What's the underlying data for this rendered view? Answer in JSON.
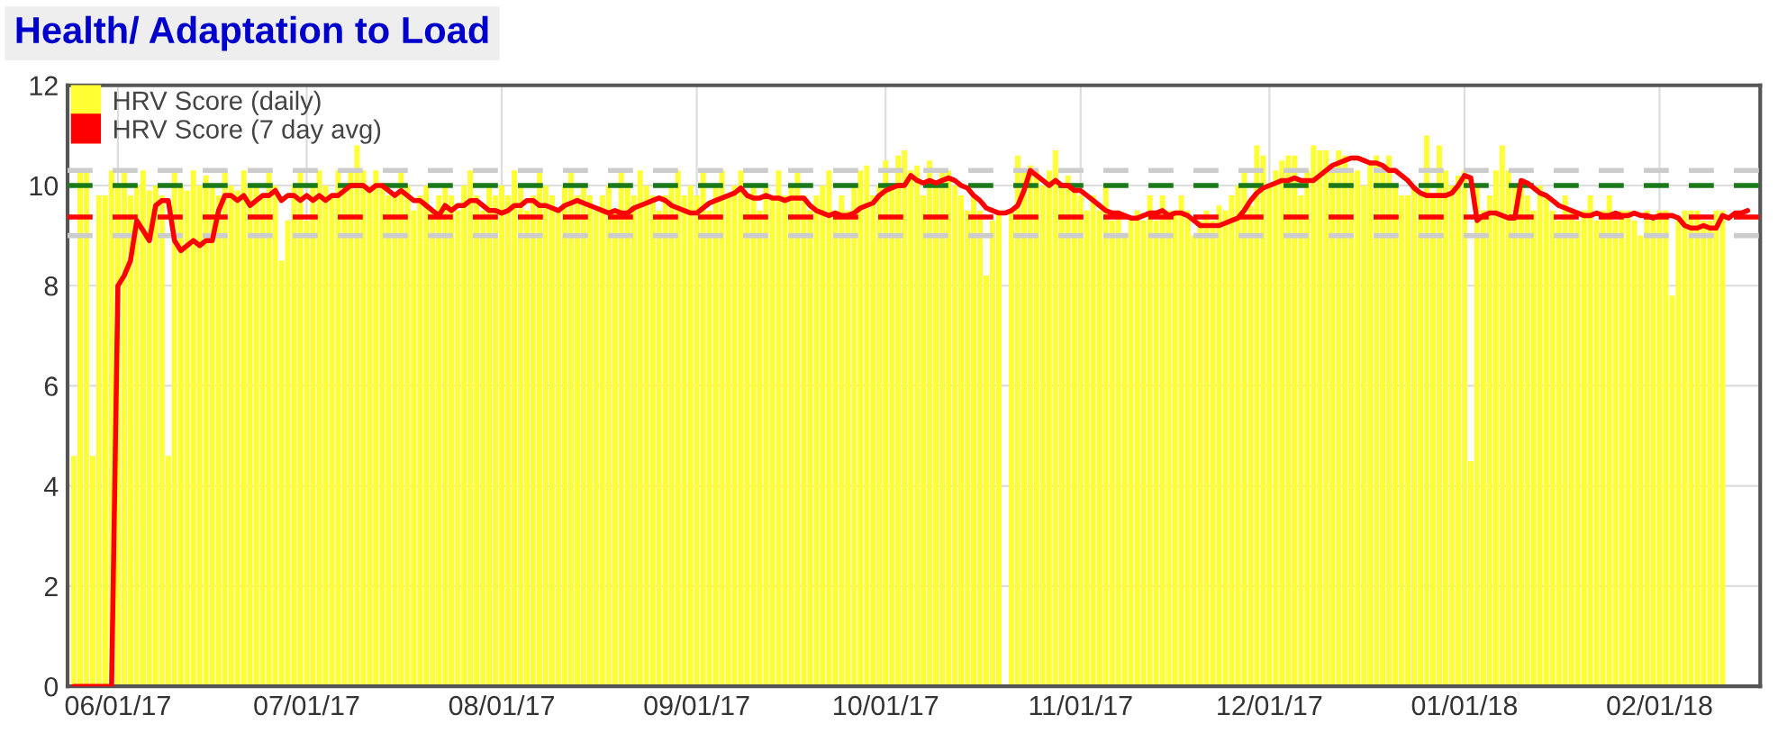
{
  "chart_data": {
    "type": "bar",
    "title": "Health/ Adaptation to Load",
    "x": [
      "2017-05-25",
      "2017-05-26",
      "2017-05-27",
      "2017-05-28",
      "2017-05-29",
      "2017-05-30",
      "2017-05-31",
      "2017-06-01",
      "2017-06-02",
      "2017-06-03",
      "2017-06-04",
      "2017-06-05",
      "2017-06-06",
      "2017-06-07",
      "2017-06-08",
      "2017-06-09",
      "2017-06-10",
      "2017-06-11",
      "2017-06-12",
      "2017-06-13",
      "2017-06-14",
      "2017-06-15",
      "2017-06-16",
      "2017-06-17",
      "2017-06-18",
      "2017-06-19",
      "2017-06-20",
      "2017-06-21",
      "2017-06-22",
      "2017-06-23",
      "2017-06-24",
      "2017-06-25",
      "2017-06-26",
      "2017-06-27",
      "2017-06-28",
      "2017-06-29",
      "2017-06-30",
      "2017-07-01",
      "2017-07-02",
      "2017-07-03",
      "2017-07-04",
      "2017-07-05",
      "2017-07-06",
      "2017-07-07",
      "2017-07-08",
      "2017-07-09",
      "2017-07-10",
      "2017-07-11",
      "2017-07-12",
      "2017-07-13",
      "2017-07-14",
      "2017-07-15",
      "2017-07-16",
      "2017-07-17",
      "2017-07-18",
      "2017-07-19",
      "2017-07-20",
      "2017-07-21",
      "2017-07-22",
      "2017-07-23",
      "2017-07-24",
      "2017-07-25",
      "2017-07-26",
      "2017-07-27",
      "2017-07-28",
      "2017-07-29",
      "2017-07-30",
      "2017-07-31",
      "2017-08-01",
      "2017-08-02",
      "2017-08-03",
      "2017-08-04",
      "2017-08-05",
      "2017-08-06",
      "2017-08-07",
      "2017-08-08",
      "2017-08-09",
      "2017-08-10",
      "2017-08-11",
      "2017-08-12",
      "2017-08-13",
      "2017-08-14",
      "2017-08-15",
      "2017-08-16",
      "2017-08-17",
      "2017-08-18",
      "2017-08-19",
      "2017-08-20",
      "2017-08-21",
      "2017-08-22",
      "2017-08-23",
      "2017-08-24",
      "2017-08-25",
      "2017-08-26",
      "2017-08-27",
      "2017-08-28",
      "2017-08-29",
      "2017-08-30",
      "2017-08-31",
      "2017-09-01",
      "2017-09-02",
      "2017-09-03",
      "2017-09-04",
      "2017-09-05",
      "2017-09-06",
      "2017-09-07",
      "2017-09-08",
      "2017-09-09",
      "2017-09-10",
      "2017-09-11",
      "2017-09-12",
      "2017-09-13",
      "2017-09-14",
      "2017-09-15",
      "2017-09-16",
      "2017-09-17",
      "2017-09-18",
      "2017-09-19",
      "2017-09-20",
      "2017-09-21",
      "2017-09-22",
      "2017-09-23",
      "2017-09-24",
      "2017-09-25",
      "2017-09-26",
      "2017-09-27",
      "2017-09-28",
      "2017-09-29",
      "2017-09-30",
      "2017-10-01",
      "2017-10-02",
      "2017-10-03",
      "2017-10-04",
      "2017-10-05",
      "2017-10-06",
      "2017-10-07",
      "2017-10-08",
      "2017-10-09",
      "2017-10-10",
      "2017-10-11",
      "2017-10-12",
      "2017-10-13",
      "2017-10-14",
      "2017-10-15",
      "2017-10-16",
      "2017-10-17",
      "2017-10-18",
      "2017-10-19",
      "2017-10-20",
      "2017-10-21",
      "2017-10-22",
      "2017-10-23",
      "2017-10-24",
      "2017-10-25",
      "2017-10-26",
      "2017-10-27",
      "2017-10-28",
      "2017-10-29",
      "2017-10-30",
      "2017-10-31",
      "2017-11-01",
      "2017-11-02",
      "2017-11-03",
      "2017-11-04",
      "2017-11-05",
      "2017-11-06",
      "2017-11-07",
      "2017-11-08",
      "2017-11-09",
      "2017-11-10",
      "2017-11-11",
      "2017-11-12",
      "2017-11-13",
      "2017-11-14",
      "2017-11-15",
      "2017-11-16",
      "2017-11-17",
      "2017-11-18",
      "2017-11-19",
      "2017-11-20",
      "2017-11-21",
      "2017-11-22",
      "2017-11-23",
      "2017-11-24",
      "2017-11-25",
      "2017-11-26",
      "2017-11-27",
      "2017-11-28",
      "2017-11-29",
      "2017-11-30",
      "2017-12-01",
      "2017-12-02",
      "2017-12-03",
      "2017-12-04",
      "2017-12-05",
      "2017-12-06",
      "2017-12-07",
      "2017-12-08",
      "2017-12-09",
      "2017-12-10",
      "2017-12-11",
      "2017-12-12",
      "2017-12-13",
      "2017-12-14",
      "2017-12-15",
      "2017-12-16",
      "2017-12-17",
      "2017-12-18",
      "2017-12-19",
      "2017-12-20",
      "2017-12-21",
      "2017-12-22",
      "2017-12-23",
      "2017-12-24",
      "2017-12-25",
      "2017-12-26",
      "2017-12-27",
      "2017-12-28",
      "2017-12-29",
      "2017-12-30",
      "2017-12-31",
      "2018-01-01",
      "2018-01-02",
      "2018-01-03",
      "2018-01-04",
      "2018-01-05",
      "2018-01-06",
      "2018-01-07",
      "2018-01-08",
      "2018-01-09",
      "2018-01-10",
      "2018-01-11",
      "2018-01-12",
      "2018-01-13",
      "2018-01-14",
      "2018-01-15",
      "2018-01-16",
      "2018-01-17",
      "2018-01-18",
      "2018-01-19",
      "2018-01-20",
      "2018-01-21",
      "2018-01-22",
      "2018-01-23",
      "2018-01-24",
      "2018-01-25",
      "2018-01-26",
      "2018-01-27",
      "2018-01-28",
      "2018-01-29",
      "2018-01-30",
      "2018-01-31",
      "2018-02-01",
      "2018-02-02",
      "2018-02-03",
      "2018-02-04",
      "2018-02-05",
      "2018-02-06",
      "2018-02-07",
      "2018-02-08",
      "2018-02-09",
      "2018-02-10",
      "2018-02-11",
      "2018-02-12",
      "2018-02-13",
      "2018-02-14",
      "2018-02-15",
      "2018-02-16"
    ],
    "series": [
      {
        "name": "HRV Score (daily)",
        "color": "#ffff33",
        "values": [
          4.6,
          10.3,
          10.3,
          4.6,
          9.8,
          9.8,
          10.3,
          10.0,
          10.3,
          9.8,
          10.0,
          10.3,
          9.9,
          10.0,
          9.8,
          4.6,
          10.3,
          10.0,
          9.9,
          10.3,
          10.0,
          10.2,
          10.0,
          9.8,
          10.3,
          10.0,
          9.9,
          10.3,
          10.0,
          10.0,
          9.8,
          10.3,
          10.0,
          8.5,
          9.3,
          10.0,
          10.3,
          9.3,
          10.0,
          10.3,
          10.0,
          9.8,
          10.3,
          10.0,
          10.3,
          10.8,
          10.3,
          10.0,
          10.3,
          10.0,
          9.8,
          9.8,
          10.3,
          10.0,
          9.5,
          9.8,
          10.0,
          9.5,
          9.8,
          10.0,
          9.8,
          9.5,
          10.0,
          10.3,
          9.8,
          9.5,
          10.0,
          9.8,
          10.0,
          9.8,
          10.3,
          10.0,
          9.5,
          9.8,
          10.3,
          10.0,
          9.8,
          9.5,
          10.0,
          10.3,
          9.8,
          10.0,
          9.8,
          9.5,
          9.8,
          10.0,
          9.5,
          10.3,
          10.0,
          9.8,
          10.3,
          10.0,
          9.8,
          9.5,
          9.8,
          10.0,
          10.3,
          9.8,
          10.0,
          9.8,
          10.3,
          9.5,
          10.0,
          10.3,
          9.8,
          10.0,
          10.3,
          9.8,
          10.0,
          9.5,
          10.0,
          9.8,
          10.3,
          9.8,
          10.0,
          10.3,
          9.8,
          9.5,
          9.8,
          10.0,
          10.3,
          9.5,
          9.8,
          9.5,
          10.0,
          10.3,
          10.4,
          9.8,
          10.0,
          10.5,
          10.0,
          10.6,
          10.7,
          10.3,
          10.4,
          9.8,
          10.5,
          10.0,
          10.3,
          10.3,
          10.0,
          9.8,
          9.5,
          9.8,
          9.5,
          8.2,
          9.3,
          9.5,
          null,
          9.5,
          10.6,
          10.3,
          10.4,
          10.3,
          10.0,
          10.3,
          10.7,
          10.0,
          10.2,
          10.0,
          9.8,
          9.5,
          9.8,
          9.5,
          10.0,
          9.3,
          9.5,
          9.0,
          9.3,
          9.5,
          9.3,
          9.8,
          9.3,
          9.8,
          9.5,
          9.5,
          9.8,
          9.5,
          9.0,
          9.3,
          9.5,
          9.3,
          9.6,
          9.5,
          9.8,
          10.0,
          10.3,
          9.6,
          10.8,
          10.6,
          10.0,
          10.3,
          10.5,
          10.6,
          10.6,
          9.8,
          10.3,
          10.8,
          10.7,
          10.7,
          10.3,
          10.7,
          10.6,
          10.3,
          10.3,
          10.0,
          10.5,
          10.6,
          10.3,
          10.6,
          10.0,
          9.8,
          9.8,
          10.0,
          9.8,
          11.0,
          9.8,
          10.8,
          10.3,
          10.0,
          10.2,
          10.3,
          4.5,
          10.0,
          9.5,
          9.8,
          10.3,
          10.8,
          10.3,
          10.0,
          10.0,
          9.8,
          9.5,
          10.0,
          9.8,
          9.5,
          9.3,
          9.8,
          9.5,
          9.3,
          9.5,
          9.8,
          9.3,
          9.5,
          9.8,
          9.3,
          9.5,
          9.5,
          9.3,
          9.0,
          9.5,
          9.3,
          9.5,
          9.5,
          7.8,
          9.3,
          9.5,
          9.5,
          9.5,
          9.3,
          9.3,
          9.5,
          9.5,
          0,
          0,
          0,
          0,
          0
        ]
      },
      {
        "name": "HRV Score (7 day avg)",
        "type": "line",
        "color": "#ff0000",
        "values": [
          0,
          0,
          0,
          0,
          0,
          0,
          0,
          8.0,
          8.2,
          8.5,
          9.3,
          9.1,
          8.9,
          9.6,
          9.7,
          9.7,
          8.9,
          8.7,
          8.8,
          8.9,
          8.8,
          8.9,
          8.9,
          9.5,
          9.8,
          9.8,
          9.7,
          9.8,
          9.6,
          9.7,
          9.8,
          9.8,
          9.9,
          9.7,
          9.8,
          9.8,
          9.7,
          9.8,
          9.7,
          9.8,
          9.7,
          9.8,
          9.8,
          9.9,
          10.0,
          10.0,
          10.0,
          9.9,
          10.0,
          10.0,
          9.9,
          9.8,
          9.9,
          9.8,
          9.7,
          9.7,
          9.6,
          9.5,
          9.4,
          9.6,
          9.5,
          9.6,
          9.6,
          9.7,
          9.7,
          9.6,
          9.5,
          9.5,
          9.45,
          9.5,
          9.6,
          9.6,
          9.7,
          9.7,
          9.6,
          9.6,
          9.55,
          9.5,
          9.6,
          9.65,
          9.7,
          9.65,
          9.6,
          9.55,
          9.5,
          9.45,
          9.5,
          9.45,
          9.45,
          9.55,
          9.6,
          9.65,
          9.7,
          9.75,
          9.7,
          9.6,
          9.55,
          9.5,
          9.45,
          9.45,
          9.55,
          9.65,
          9.7,
          9.75,
          9.8,
          9.85,
          9.95,
          9.8,
          9.75,
          9.75,
          9.8,
          9.75,
          9.75,
          9.7,
          9.75,
          9.75,
          9.75,
          9.6,
          9.5,
          9.45,
          9.4,
          9.45,
          9.4,
          9.4,
          9.45,
          9.55,
          9.6,
          9.65,
          9.8,
          9.9,
          9.95,
          10.0,
          10.0,
          10.2,
          10.1,
          10.05,
          10.1,
          10.05,
          10.1,
          10.15,
          10.1,
          10.0,
          9.95,
          9.8,
          9.7,
          9.55,
          9.5,
          9.45,
          9.45,
          9.5,
          9.6,
          9.9,
          10.3,
          10.2,
          10.1,
          10.0,
          10.1,
          10.0,
          10.0,
          9.9,
          9.9,
          9.8,
          9.7,
          9.6,
          9.5,
          9.45,
          9.45,
          9.4,
          9.35,
          9.35,
          9.4,
          9.45,
          9.45,
          9.5,
          9.4,
          9.45,
          9.45,
          9.4,
          9.3,
          9.2,
          9.2,
          9.2,
          9.2,
          9.25,
          9.3,
          9.35,
          9.5,
          9.7,
          9.85,
          9.95,
          10.0,
          10.05,
          10.1,
          10.1,
          10.15,
          10.1,
          10.1,
          10.1,
          10.2,
          10.3,
          10.4,
          10.45,
          10.5,
          10.55,
          10.55,
          10.5,
          10.45,
          10.45,
          10.4,
          10.3,
          10.3,
          10.2,
          10.1,
          9.95,
          9.85,
          9.8,
          9.8,
          9.8,
          9.8,
          9.85,
          10.0,
          10.2,
          10.15,
          9.3,
          9.4,
          9.45,
          9.45,
          9.4,
          9.35,
          9.35,
          10.1,
          10.05,
          9.95,
          9.85,
          9.8,
          9.7,
          9.6,
          9.55,
          9.5,
          9.45,
          9.4,
          9.4,
          9.45,
          9.4,
          9.4,
          9.45,
          9.4,
          9.4,
          9.45,
          9.4,
          9.4,
          9.35,
          9.4,
          9.4,
          9.4,
          9.35,
          9.2,
          9.15,
          9.15,
          9.2,
          9.15,
          9.15,
          9.4,
          9.35,
          9.45,
          9.45,
          9.5,
          null
        ]
      }
    ],
    "xlim": [
      "2017-05-24",
      "2018-02-17"
    ],
    "xticks": [
      {
        "value": "2017-06-01",
        "label": "06/01/17"
      },
      {
        "value": "2017-07-01",
        "label": "07/01/17"
      },
      {
        "value": "2017-08-01",
        "label": "08/01/17"
      },
      {
        "value": "2017-09-01",
        "label": "09/01/17"
      },
      {
        "value": "2017-10-01",
        "label": "10/01/17"
      },
      {
        "value": "2017-11-01",
        "label": "11/01/17"
      },
      {
        "value": "2017-12-01",
        "label": "12/01/17"
      },
      {
        "value": "2018-01-01",
        "label": "01/01/18"
      },
      {
        "value": "2018-02-01",
        "label": "02/01/18"
      }
    ],
    "ylim": [
      0,
      12
    ],
    "yticks": [
      0,
      2,
      4,
      6,
      8,
      10,
      12
    ],
    "ref_lines": [
      {
        "axis": "y",
        "value": 10.3,
        "color": "#cccccc",
        "line_style": "dashed"
      },
      {
        "axis": "y",
        "value": 9.0,
        "color": "#cccccc",
        "line_style": "dashed"
      },
      {
        "axis": "y",
        "value": 10.0,
        "color": "#1a7a1a",
        "line_style": "dashed"
      },
      {
        "axis": "y",
        "value": 9.37,
        "color": "#ff0000",
        "line_style": "dashed"
      }
    ],
    "grid": true,
    "legend": "top left"
  }
}
